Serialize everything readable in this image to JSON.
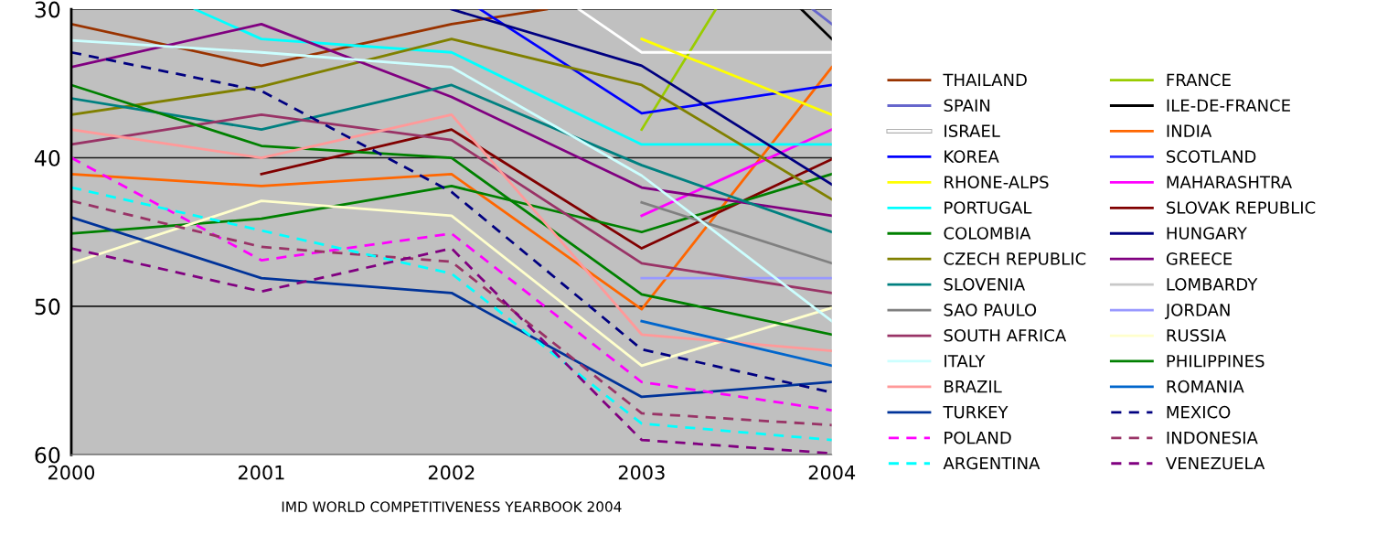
{
  "chart_data": {
    "type": "line",
    "xlabel": "IMD WORLD COMPETITIVENESS YEARBOOK 2004",
    "x": [
      2000,
      2001,
      2002,
      2003,
      2004
    ],
    "xlim": [
      2000,
      2004
    ],
    "xticks": [
      2000,
      2001,
      2002,
      2003,
      2004
    ],
    "ylim": [
      60,
      30
    ],
    "yticks": [
      30,
      40,
      50,
      60
    ],
    "grid": "y",
    "legend": "right",
    "line_style": "solid",
    "series": [
      {
        "name": "THAILAND",
        "color": "#993300",
        "x": [
          2000,
          2001,
          2002,
          2002.5
        ],
        "values": [
          31.0,
          33.8,
          31.0,
          30.0
        ]
      },
      {
        "name": "FRANCE",
        "color": "#99cc00",
        "x": [
          2003,
          2003.39
        ],
        "values": [
          38.1,
          30.0
        ]
      },
      {
        "name": "SPAIN",
        "color": "#6666cc",
        "x": [
          2003.9,
          2004
        ],
        "values": [
          30.0,
          31.0
        ]
      },
      {
        "name": "ILE-DE-FRANCE",
        "color": "#000000",
        "x": [
          2003.84,
          2004
        ],
        "values": [
          30.0,
          32.0
        ]
      },
      {
        "name": "ISRAEL",
        "color": "#ffffff",
        "x": [
          2002.67,
          2003,
          2004
        ],
        "values": [
          30.0,
          32.9,
          32.9
        ]
      },
      {
        "name": "INDIA",
        "color": "#ff6600",
        "values": [
          41.1,
          41.9,
          41.1,
          50.2,
          33.9
        ]
      },
      {
        "name": "KOREA",
        "color": "#0000ff",
        "x": [
          2002.15,
          2003,
          2004
        ],
        "values": [
          30.0,
          37.0,
          35.1
        ]
      },
      {
        "name": "SCOTLAND",
        "color": "#3333ff",
        "values": [
          null,
          null,
          null,
          null,
          null
        ]
      },
      {
        "name": "RHONE-ALPS",
        "color": "#ffff00",
        "values": [
          null,
          null,
          null,
          32.0,
          37.1
        ]
      },
      {
        "name": "MAHARASHTRA",
        "color": "#ff00ff",
        "values": [
          null,
          null,
          null,
          43.9,
          38.1
        ]
      },
      {
        "name": "PORTUGAL",
        "color": "#00ffff",
        "x": [
          2000.65,
          2001,
          2002,
          2003,
          2004
        ],
        "values": [
          30.0,
          32.0,
          32.9,
          39.1,
          39.1
        ]
      },
      {
        "name": "SLOVAK REPUBLIC",
        "color": "#800000",
        "values": [
          null,
          41.1,
          38.1,
          46.1,
          40.1
        ]
      },
      {
        "name": "COLOMBIA",
        "color": "#008000",
        "values": [
          45.1,
          44.1,
          41.9,
          45.0,
          41.1
        ]
      },
      {
        "name": "HUNGARY",
        "color": "#000080",
        "values": [
          null,
          null,
          30.0,
          33.8,
          41.8
        ]
      },
      {
        "name": "CZECH REPUBLIC",
        "color": "#808000",
        "values": [
          37.1,
          35.2,
          32.0,
          35.1,
          42.8
        ]
      },
      {
        "name": "GREECE",
        "color": "#800080",
        "values": [
          33.9,
          31.0,
          35.9,
          42.0,
          43.9
        ]
      },
      {
        "name": "SLOVENIA",
        "color": "#008080",
        "values": [
          36.0,
          38.1,
          35.1,
          40.5,
          45.0
        ]
      },
      {
        "name": "LOMBARDY",
        "color": "#c8c8c8",
        "values": [
          null,
          null,
          null,
          null,
          null
        ]
      },
      {
        "name": "SAO PAULO",
        "color": "#808080",
        "values": [
          null,
          null,
          null,
          43.0,
          47.1
        ]
      },
      {
        "name": "JORDAN",
        "color": "#9999ff",
        "values": [
          null,
          null,
          null,
          48.1,
          48.1
        ]
      },
      {
        "name": "SOUTH AFRICA",
        "color": "#993366",
        "values": [
          39.1,
          37.1,
          38.8,
          47.1,
          49.1
        ]
      },
      {
        "name": "RUSSIA",
        "color": "#ffffcc",
        "values": [
          47.1,
          42.9,
          43.9,
          54.0,
          50.1
        ]
      },
      {
        "name": "ITALY",
        "color": "#ccffff",
        "values": [
          32.1,
          32.9,
          33.9,
          41.2,
          51.0
        ]
      },
      {
        "name": "PHILIPPINES",
        "color": "#008000",
        "values": [
          35.1,
          39.2,
          40.0,
          49.2,
          51.9
        ]
      },
      {
        "name": "BRAZIL",
        "color": "#ff9999",
        "values": [
          38.1,
          40.0,
          37.1,
          51.9,
          53.0
        ]
      },
      {
        "name": "ROMANIA",
        "color": "#0066cc",
        "values": [
          null,
          null,
          null,
          51.0,
          54.0
        ]
      },
      {
        "name": "TURKEY",
        "color": "#003399",
        "values": [
          44.0,
          48.1,
          49.1,
          56.1,
          55.1
        ]
      },
      {
        "name": "MEXICO",
        "color": "#000080",
        "line_style": "dashed",
        "values": [
          32.9,
          35.5,
          42.3,
          52.9,
          55.8
        ]
      },
      {
        "name": "POLAND",
        "color": "#ff00ff",
        "line_style": "dashed",
        "values": [
          40.0,
          46.9,
          45.1,
          55.1,
          57.0
        ]
      },
      {
        "name": "INDONESIA",
        "color": "#993366",
        "line_style": "dashed",
        "values": [
          42.9,
          46.0,
          47.0,
          57.2,
          58.0
        ]
      },
      {
        "name": "ARGENTINA",
        "color": "#00ffff",
        "line_style": "dashed",
        "values": [
          42.0,
          44.9,
          47.8,
          57.9,
          59.0
        ]
      },
      {
        "name": "VENEZUELA",
        "color": "#800080",
        "line_style": "dashed",
        "values": [
          46.1,
          49.0,
          46.1,
          59.0,
          59.9
        ]
      }
    ]
  }
}
